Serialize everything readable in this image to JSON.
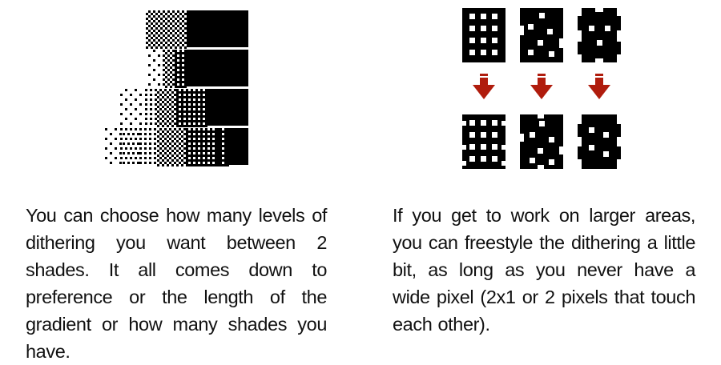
{
  "figures": {
    "left": {
      "description_icons": "dither-gradient-bars",
      "rows": 4
    },
    "right": {
      "tiles_top": [
        "dither-tile-grid",
        "dither-tile-scattered",
        "dither-tile-irregular"
      ],
      "tiles_bottom": [
        "dither-tile-grid-bad",
        "dither-tile-scattered-bad",
        "dither-tile-irregular-bad"
      ],
      "arrow_color": "#b01c0d",
      "arrow_icon": "arrow-down-icon"
    }
  },
  "captions": {
    "left": "You can choose how many levels of dithering you want between 2 shades. It all comes down to preference or the length of the gradient or how many shades you have.",
    "right": "If you get to work on larger areas, you can freestyle the dithering a little bit, as long as you never have a wide pixel (2x1 or 2 pixels that touch each other)."
  }
}
